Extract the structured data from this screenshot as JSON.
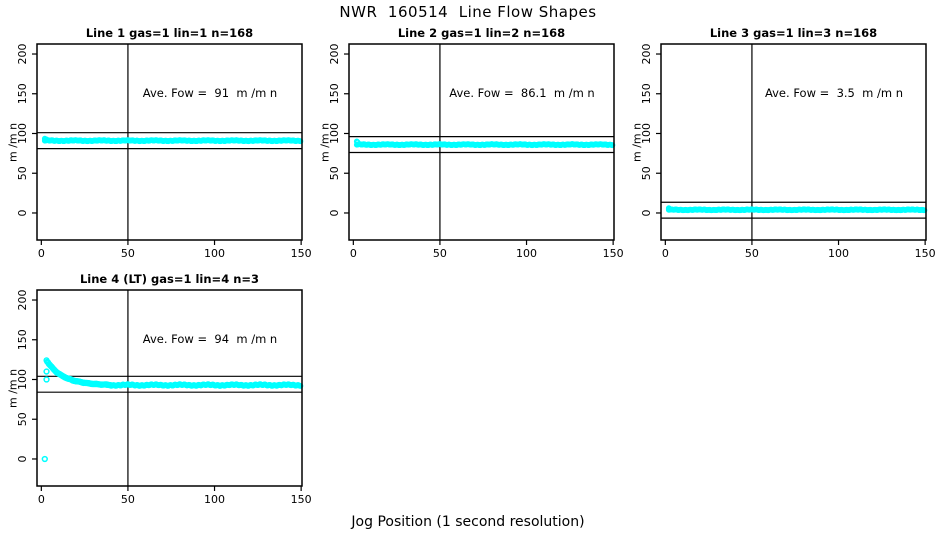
{
  "page": {
    "main_title": "NWR  160514  Line Flow Shapes",
    "global_x_label": "Jog Position (1 second resolution)",
    "background_color": "#ffffff",
    "point_color": "#00ffff",
    "line_color": "#000000"
  },
  "chart_data": [
    {
      "type": "scatter",
      "grid_pos": {
        "row": 0,
        "col": 0
      },
      "title": "Line 1 gas=1 lin=1 n=168",
      "annotation": "Ave. Fow =  91  m /m n",
      "ave_flow": 91,
      "ylabel": "m /m n",
      "xlabel": "",
      "xlim": [
        -2.5,
        150.5
      ],
      "ylim": [
        -34,
        212.6
      ],
      "xticks": [
        0,
        50,
        100,
        150
      ],
      "yticks": [
        0,
        50,
        100,
        150,
        200
      ],
      "vline_x": 50,
      "hlines": [
        101,
        81
      ],
      "grid": false,
      "series": {
        "mode": "flat",
        "x_from": 2,
        "x_to": 150,
        "value": 91,
        "jitter": 0.7,
        "extra_points": [
          [
            2,
            93.5
          ],
          [
            2.5,
            92.5
          ],
          [
            3,
            92.5
          ]
        ]
      }
    },
    {
      "type": "scatter",
      "grid_pos": {
        "row": 0,
        "col": 1
      },
      "title": "Line 2 gas=1 lin=2 n=168",
      "annotation": "Ave. Fow =  86.1  m /m n",
      "ave_flow": 86.1,
      "ylabel": "m /m n",
      "xlabel": "",
      "xlim": [
        -2.5,
        150.5
      ],
      "ylim": [
        -34,
        212.6
      ],
      "xticks": [
        0,
        50,
        100,
        150
      ],
      "yticks": [
        0,
        50,
        100,
        150,
        200
      ],
      "vline_x": 50,
      "hlines": [
        96.1,
        76.1
      ],
      "grid": false,
      "series": {
        "mode": "flat",
        "x_from": 2,
        "x_to": 150,
        "value": 86,
        "jitter": 0.7,
        "extra_points": [
          [
            2,
            90
          ],
          [
            2.5,
            89
          ]
        ]
      }
    },
    {
      "type": "scatter",
      "grid_pos": {
        "row": 0,
        "col": 2
      },
      "title": "Line 3 gas=1 lin=3 n=168",
      "annotation": "Ave. Fow =  3.5  m /m n",
      "ave_flow": 3.5,
      "ylabel": "m /m n",
      "xlabel": "",
      "xlim": [
        -2.5,
        150.5
      ],
      "ylim": [
        -34,
        212.6
      ],
      "xticks": [
        0,
        50,
        100,
        150
      ],
      "yticks": [
        0,
        50,
        100,
        150,
        200
      ],
      "vline_x": 50,
      "hlines": [
        13.5,
        -6.5
      ],
      "grid": false,
      "series": {
        "mode": "flat",
        "x_from": 2,
        "x_to": 150,
        "value": 4,
        "jitter": 0.6,
        "extra_points": [
          [
            2,
            6
          ],
          [
            2.5,
            5
          ]
        ]
      }
    },
    {
      "type": "scatter",
      "grid_pos": {
        "row": 1,
        "col": 0
      },
      "title": "Line 4 (LT) gas=1 lin=4 n=3",
      "annotation": "Ave. Fow =  94  m /m n",
      "ave_flow": 94,
      "ylabel": "m /m n",
      "xlabel": "",
      "xlim": [
        -2.5,
        150.5
      ],
      "ylim": [
        -34,
        212.6
      ],
      "xticks": [
        0,
        50,
        100,
        150
      ],
      "yticks": [
        0,
        50,
        100,
        150,
        200
      ],
      "vline_x": 50,
      "hlines": [
        104,
        84
      ],
      "grid": false,
      "series": {
        "mode": "decay",
        "points": [
          [
            3,
            124
          ],
          [
            4,
            121
          ],
          [
            5,
            118
          ],
          [
            6,
            115.5
          ],
          [
            7,
            113
          ],
          [
            8,
            111
          ],
          [
            9,
            109
          ],
          [
            10,
            107.5
          ],
          [
            11,
            106
          ],
          [
            12,
            104.5
          ],
          [
            13,
            103.5
          ],
          [
            14,
            102.5
          ],
          [
            15,
            101.5
          ],
          [
            16,
            100.5
          ],
          [
            17,
            100
          ],
          [
            18,
            99
          ],
          [
            19,
            98.5
          ],
          [
            20,
            98
          ],
          [
            21,
            97.5
          ],
          [
            22,
            97
          ],
          [
            23,
            96.6
          ],
          [
            24,
            96.2
          ],
          [
            25,
            95.8
          ],
          [
            26,
            95.5
          ],
          [
            27,
            95.2
          ],
          [
            28,
            95
          ],
          [
            29,
            94.7
          ],
          [
            30,
            94.5
          ],
          [
            32,
            94.1
          ],
          [
            34,
            93.8
          ],
          [
            36,
            93.6
          ],
          [
            38,
            93.4
          ],
          [
            40,
            93.2
          ]
        ],
        "flat": {
          "x_from": 40,
          "x_to": 150,
          "value": 93,
          "jitter": 1.1
        },
        "outliers": [
          [
            2,
            0
          ],
          [
            3,
            110
          ],
          [
            3,
            100
          ]
        ]
      }
    }
  ]
}
